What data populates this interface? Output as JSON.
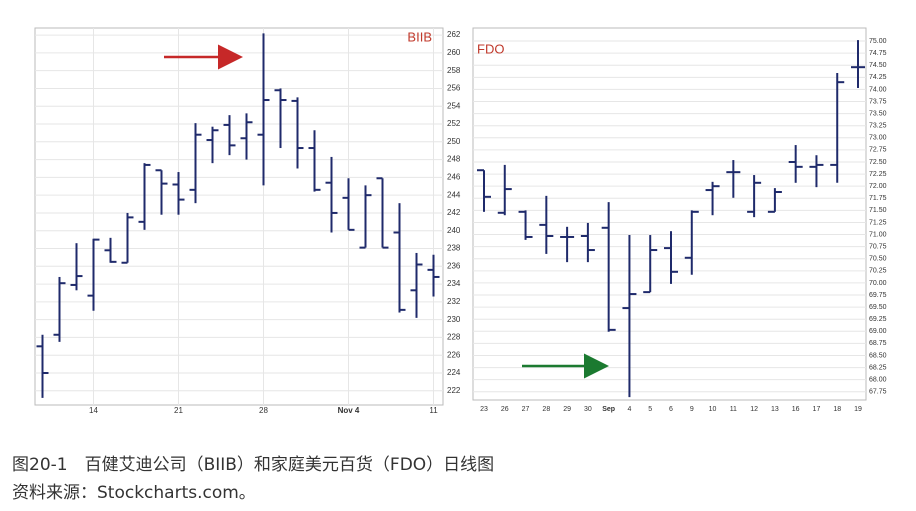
{
  "chart_data": [
    {
      "type": "ohlc",
      "title": "BIIB",
      "title_color": "#c0392b",
      "color": "#1f2a6b",
      "grid": true,
      "categories": [
        null,
        null,
        null,
        "14",
        null,
        null,
        null,
        null,
        "21",
        null,
        null,
        null,
        null,
        "28",
        null,
        null,
        null,
        null,
        "Nov 4",
        null,
        null,
        null,
        null,
        "11"
      ],
      "open": [
        227,
        228.3,
        233.9,
        232.7,
        237.8,
        236.4,
        241,
        246.8,
        245.2,
        244.6,
        250.2,
        251.9,
        250.4,
        250.8,
        255.8,
        254.6,
        249.3,
        245.4,
        243.7,
        238.1,
        245.9,
        239.8,
        233.3,
        235.6
      ],
      "high": [
        228.3,
        234.8,
        238.6,
        239.1,
        239.2,
        242,
        247.6,
        246.8,
        246.6,
        252.1,
        251.7,
        253,
        253.2,
        262.2,
        256,
        255,
        251.3,
        248.3,
        245.9,
        245.1,
        245.9,
        243.1,
        237.5,
        237.3
      ],
      "low": [
        221.2,
        227.5,
        233.3,
        231,
        236.4,
        236.4,
        240.1,
        241.8,
        241.8,
        243.1,
        247.6,
        248.5,
        248,
        245.1,
        249.3,
        247,
        244.4,
        239.8,
        240.1,
        238.1,
        238.1,
        230.8,
        230.2,
        232.6
      ],
      "close": [
        224,
        234.1,
        234.9,
        239,
        236.5,
        241.5,
        247.4,
        245.3,
        243.5,
        250.8,
        251.3,
        249.6,
        252.2,
        254.7,
        254.7,
        249.3,
        244.6,
        242,
        240.1,
        244,
        238.1,
        231.1,
        236.2,
        234.8
      ],
      "ylim": [
        220.4,
        262.8
      ],
      "yticks": [
        222,
        224,
        226,
        228,
        230,
        232,
        234,
        236,
        238,
        240,
        242,
        244,
        246,
        248,
        250,
        252,
        254,
        256,
        258,
        260,
        262
      ]
    },
    {
      "type": "ohlc",
      "title": "FDO",
      "title_color": "#c0392b",
      "color": "#1f2a6b",
      "grid": true,
      "categories": [
        "23",
        "26",
        "27",
        "28",
        "29",
        "30",
        "Sep",
        "4",
        "5",
        "6",
        "9",
        "10",
        "11",
        "12",
        "13",
        "16",
        "17",
        "18",
        "19"
      ],
      "open": [
        72.33,
        71.45,
        71.47,
        71.2,
        70.95,
        70.97,
        71.14,
        69.48,
        69.81,
        70.72,
        70.52,
        71.92,
        72.29,
        71.47,
        71.47,
        72.5,
        72.4,
        72.44,
        74.46
      ],
      "high": [
        72.33,
        72.44,
        71.5,
        71.8,
        71.16,
        71.24,
        71.67,
        70.99,
        70.99,
        71.07,
        71.5,
        72.09,
        72.54,
        72.23,
        71.96,
        72.85,
        72.64,
        74.34,
        75.02
      ],
      "low": [
        71.47,
        71.4,
        70.89,
        70.6,
        70.43,
        70.43,
        68.99,
        67.64,
        69.81,
        69.98,
        70.17,
        71.4,
        71.76,
        71.36,
        71.47,
        72.07,
        71.98,
        72.07,
        74.03
      ],
      "close": [
        71.78,
        71.94,
        70.95,
        70.97,
        70.95,
        70.68,
        69.03,
        69.77,
        70.68,
        70.23,
        71.47,
        72,
        72.29,
        72.07,
        71.88,
        72.4,
        72.44,
        74.15,
        74.46
      ],
      "ylim": [
        67.58,
        75.27
      ],
      "yticks": [
        {
          "value": 75,
          "label": "75.00"
        },
        {
          "value": 74.75,
          "label": "74.75"
        },
        {
          "value": 74.5,
          "label": "74.50"
        },
        {
          "value": 74.25,
          "label": "74.25"
        },
        {
          "value": 74,
          "label": "74.00"
        },
        {
          "value": 73.75,
          "label": "73.75"
        },
        {
          "value": 73.5,
          "label": "73.50"
        },
        {
          "value": 73.25,
          "label": "73.25"
        },
        {
          "value": 73,
          "label": "73.00"
        },
        {
          "value": 72.75,
          "label": "72.75"
        },
        {
          "value": 72.5,
          "label": "72.50"
        },
        {
          "value": 72.25,
          "label": "72.25"
        },
        {
          "value": 72,
          "label": "72.00"
        },
        {
          "value": 71.75,
          "label": "71.75"
        },
        {
          "value": 71.5,
          "label": "71.50"
        },
        {
          "value": 71.25,
          "label": "71.25"
        },
        {
          "value": 71,
          "label": "71.00"
        },
        {
          "value": 70.75,
          "label": "70.75"
        },
        {
          "value": 70.5,
          "label": "70.50"
        },
        {
          "value": 70.25,
          "label": "70.25"
        },
        {
          "value": 70,
          "label": "70.00"
        },
        {
          "value": 69.75,
          "label": "69.75"
        },
        {
          "value": 69.5,
          "label": "69.50"
        },
        {
          "value": 69.25,
          "label": "69.25"
        },
        {
          "value": 69,
          "label": "69.00"
        },
        {
          "value": 68.75,
          "label": "68.75"
        },
        {
          "value": 68.5,
          "label": "68.50"
        },
        {
          "value": 68.25,
          "label": "68.25"
        },
        {
          "value": 68,
          "label": "68.00"
        },
        {
          "value": 67.75,
          "label": "67.75"
        }
      ]
    }
  ],
  "caption": {
    "figure": "图20-1　百健艾迪公司（BIIB）和家庭美元百货（FDO）日线图",
    "source": "资料来源：Stockcharts.com。"
  }
}
